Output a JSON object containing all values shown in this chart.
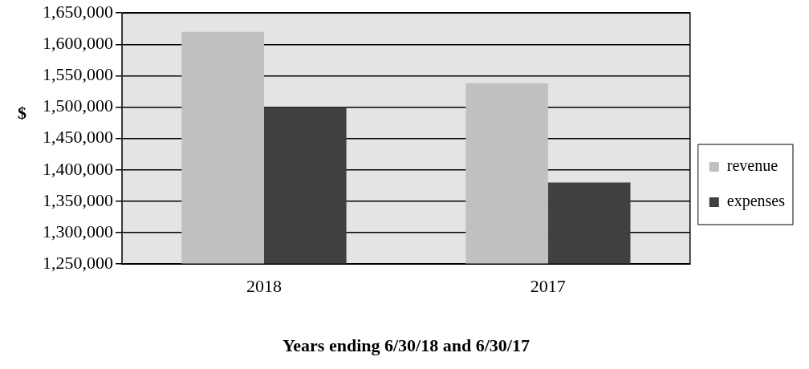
{
  "chart_data": {
    "type": "bar",
    "xlabel": "Years ending 6/30/18 and 6/30/17",
    "ylabel": "$",
    "categories": [
      "2018",
      "2017"
    ],
    "series": [
      {
        "name": "revenue",
        "color": "#c0c0c0",
        "values": [
          1620000,
          1538000
        ]
      },
      {
        "name": "expenses",
        "color": "#404040",
        "values": [
          1500000,
          1380000
        ]
      }
    ],
    "ylim": [
      1250000,
      1650000
    ],
    "yticks": [
      {
        "value": 1250000,
        "label": "1,250,000"
      },
      {
        "value": 1300000,
        "label": "1,300,000"
      },
      {
        "value": 1350000,
        "label": "1,350,000"
      },
      {
        "value": 1400000,
        "label": "1,400,000"
      },
      {
        "value": 1450000,
        "label": "1,450,000"
      },
      {
        "value": 1500000,
        "label": "1,500,000"
      },
      {
        "value": 1550000,
        "label": "1,550,000"
      },
      {
        "value": 1600000,
        "label": "1,600,000"
      },
      {
        "value": 1650000,
        "label": "1,650,000"
      }
    ],
    "grid": "y",
    "legend": "right"
  }
}
